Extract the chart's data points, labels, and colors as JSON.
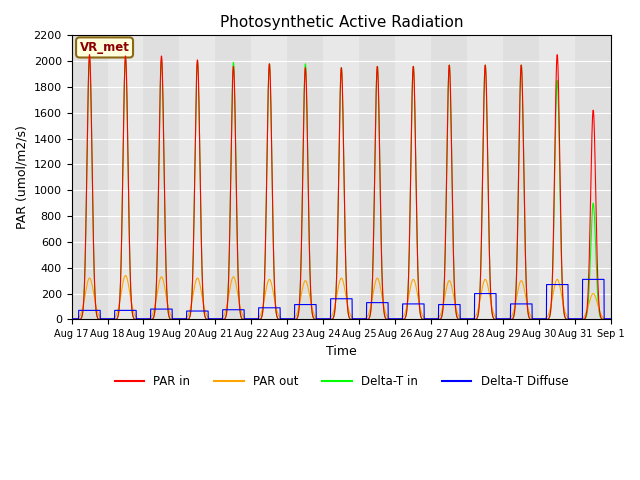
{
  "title": "Photosynthetic Active Radiation",
  "ylabel": "PAR (umol/m2/s)",
  "xlabel": "Time",
  "ylim": [
    0,
    2200
  ],
  "background_color": "#e8e8e8",
  "grid_color": "white",
  "annotation_text": "VR_met",
  "annotation_box_color": "#ffffdd",
  "annotation_border_color": "#8b6914",
  "x_tick_labels": [
    "Aug 17",
    "Aug 18",
    "Aug 19",
    "Aug 20",
    "Aug 21",
    "Aug 22",
    "Aug 23",
    "Aug 24",
    "Aug 25",
    "Aug 26",
    "Aug 27",
    "Aug 28",
    "Aug 29",
    "Aug 30",
    "Aug 31",
    "Sep 1"
  ],
  "n_days": 15,
  "par_in_peaks": [
    2050,
    2040,
    2040,
    2010,
    1960,
    1980,
    1950,
    1950,
    1960,
    1960,
    1970,
    1970,
    1970,
    2050,
    1620
  ],
  "par_out_peaks": [
    320,
    340,
    330,
    320,
    330,
    310,
    300,
    320,
    320,
    310,
    300,
    310,
    300,
    310,
    200
  ],
  "delta_t_peaks": [
    2020,
    2020,
    2010,
    2000,
    1990,
    1980,
    1980,
    1950,
    1960,
    1960,
    1970,
    1970,
    1970,
    1850,
    900
  ],
  "delta_diffuse_day": [
    70,
    70,
    80,
    65,
    75,
    90,
    115,
    160,
    130,
    120,
    115,
    200,
    120,
    270,
    310
  ],
  "delta_diffuse_night": [
    5,
    5,
    5,
    5,
    5,
    5,
    5,
    5,
    5,
    5,
    5,
    5,
    5,
    5,
    5
  ]
}
